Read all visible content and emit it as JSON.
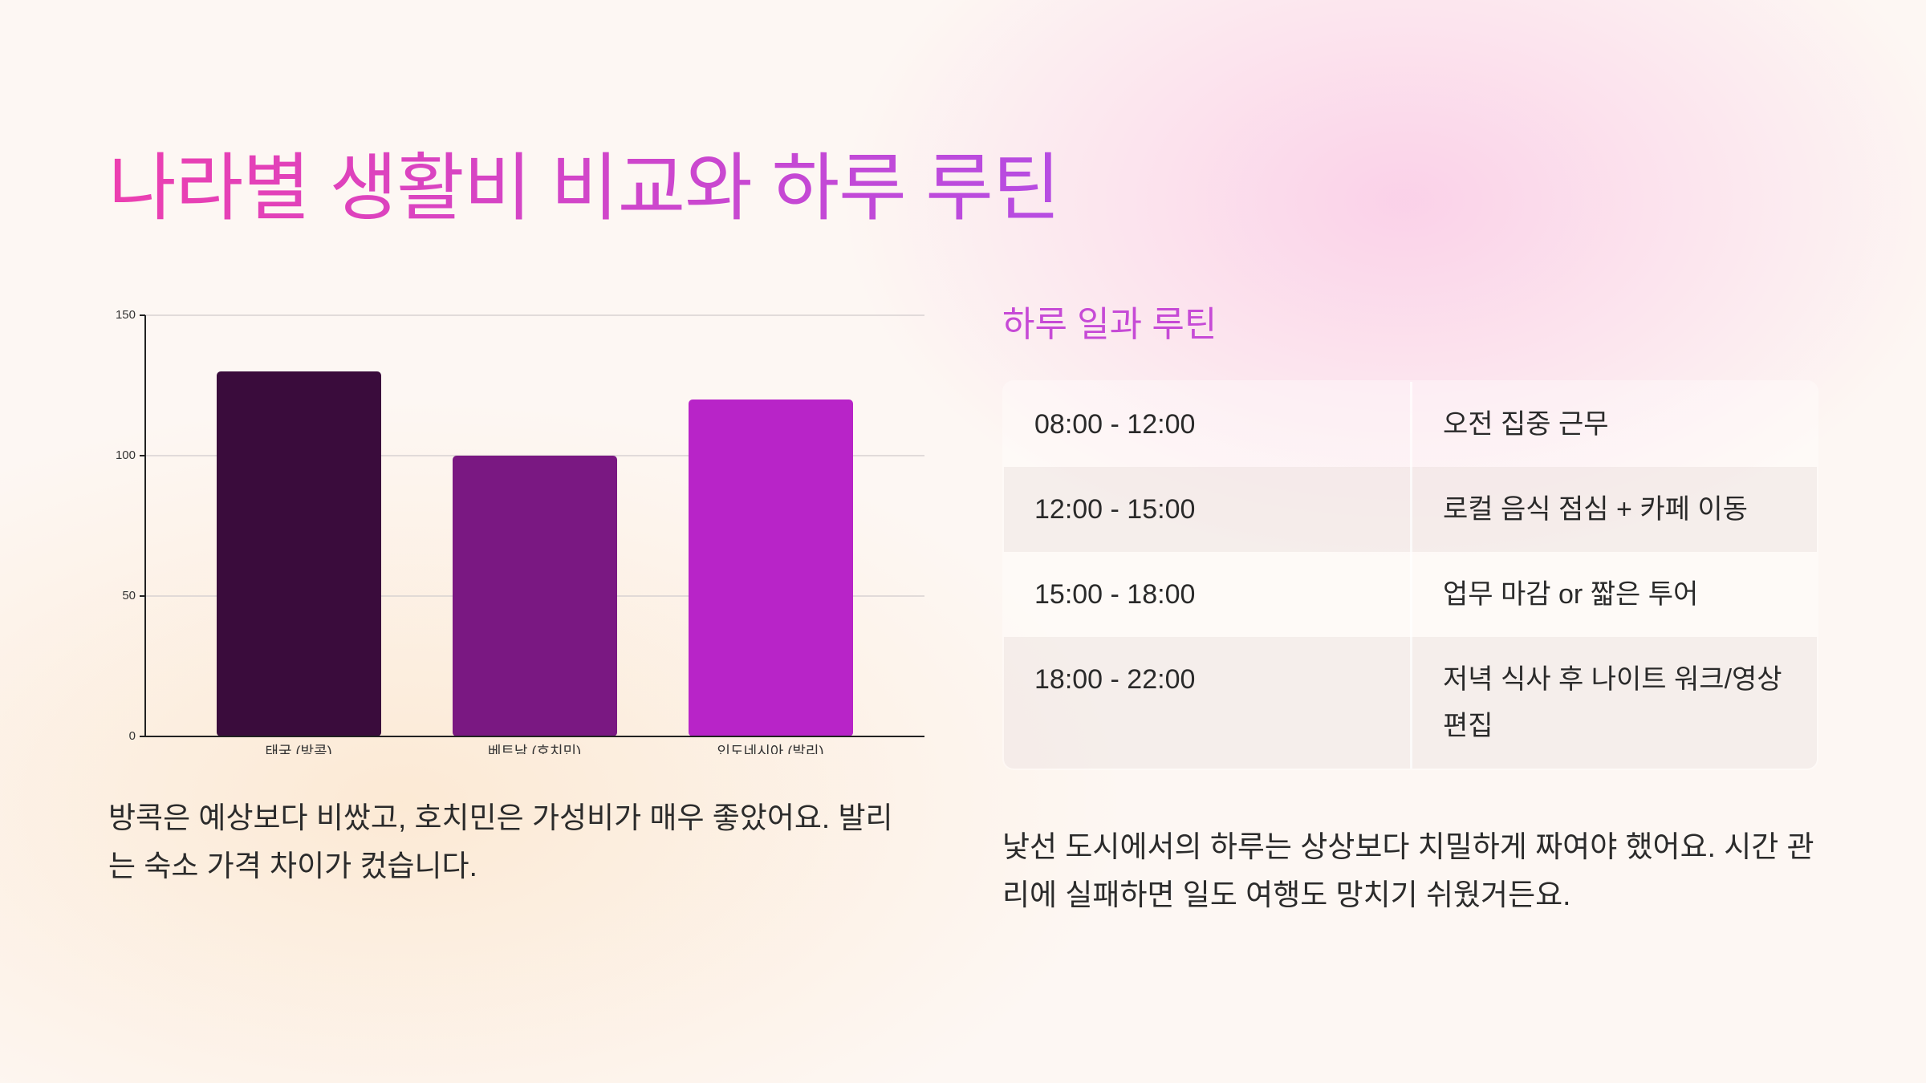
{
  "title": "나라별 생활비 비교와 하루 루틴",
  "chart_data": {
    "type": "bar",
    "categories": [
      "태국 (방콕)",
      "베트남 (호치민)",
      "인도네시아 (발리)"
    ],
    "values": [
      130,
      100,
      120
    ],
    "colors": [
      "#3a0c3c",
      "#7a1882",
      "#b824c8"
    ],
    "ylim": [
      0,
      150
    ],
    "yticks": [
      0,
      50,
      100,
      150
    ],
    "grid": true
  },
  "chart_caption": "방콕은 예상보다 비쌌고, 호치민은 가성비가 매우 좋았어요. 발리는 숙소 가격 차이가 컸습니다.",
  "routine": {
    "title": "하루 일과 루틴",
    "rows": [
      [
        "08:00 - 12:00",
        "오전 집중 근무"
      ],
      [
        "12:00 - 15:00",
        "로컬 음식 점심 + 카페 이동"
      ],
      [
        "15:00 - 18:00",
        "업무 마감 or 짧은 투어"
      ],
      [
        "18:00 - 22:00",
        "저녁 식사 후 나이트 워크/영상 편집"
      ]
    ],
    "caption": "낯선 도시에서의 하루는 상상보다 치밀하게 짜여야 했어요. 시간 관리에 실패하면 일도 여행도 망치기 쉬웠거든요."
  }
}
